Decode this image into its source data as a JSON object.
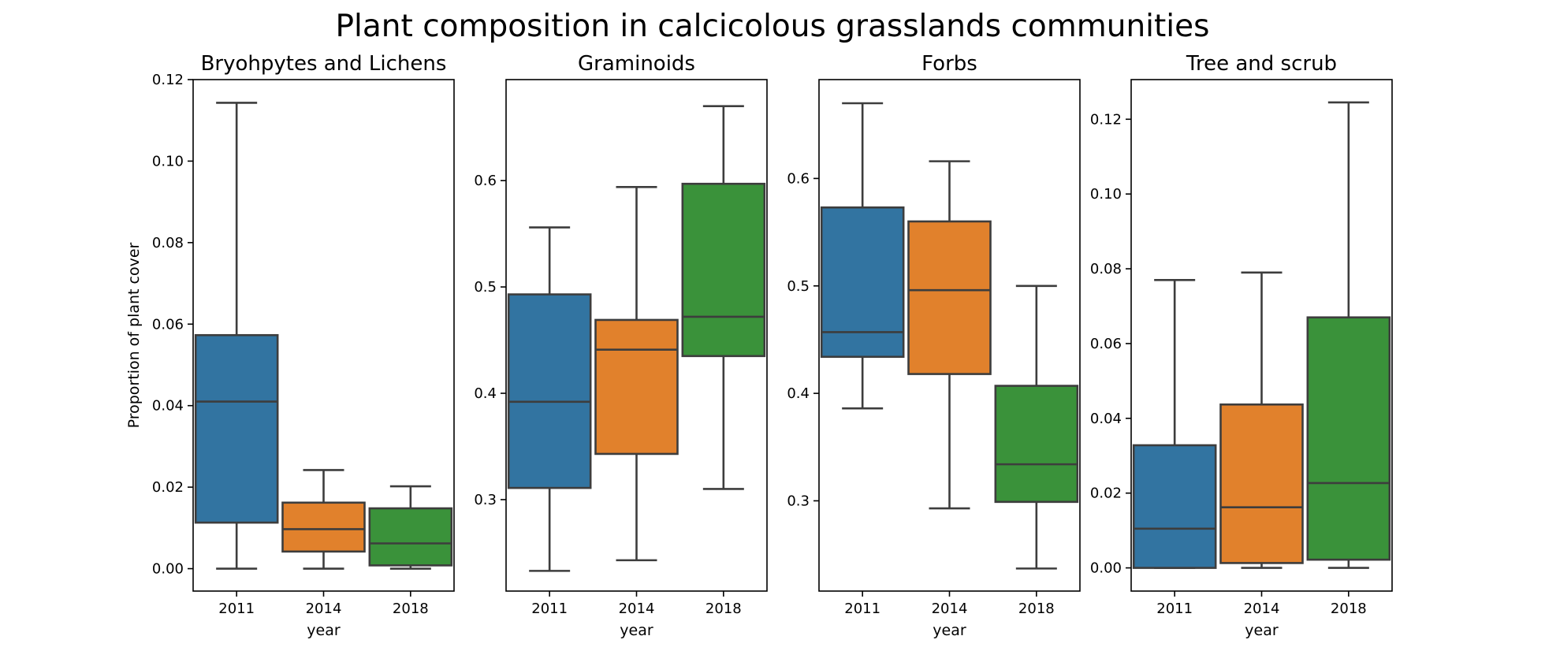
{
  "figure": {
    "title": "Plant composition in calcicolous grasslands communities",
    "colors": {
      "2011": "#3274a1",
      "2014": "#e1812c",
      "2018": "#3a923a",
      "line": "#3d3d3d"
    }
  },
  "chart_data": [
    {
      "type": "boxplot",
      "title": "Bryohpytes and Lichens",
      "xlabel": "year",
      "ylabel": "Proportion of plant cover",
      "categories": [
        "2011",
        "2014",
        "2018"
      ],
      "ylim": [
        -0.0055,
        0.12
      ],
      "yticks": [
        0.0,
        0.02,
        0.04,
        0.06,
        0.08,
        0.1,
        0.12
      ],
      "ytick_labels": [
        "0.00",
        "0.02",
        "0.04",
        "0.06",
        "0.08",
        "0.10",
        "0.12"
      ],
      "boxes": [
        {
          "category": "2011",
          "whisker_low": 0.0,
          "q1": 0.0113,
          "median": 0.041,
          "q3": 0.0573,
          "whisker_high": 0.1143
        },
        {
          "category": "2014",
          "whisker_low": 0.0,
          "q1": 0.0042,
          "median": 0.0097,
          "q3": 0.0162,
          "whisker_high": 0.0242
        },
        {
          "category": "2018",
          "whisker_low": 0.0,
          "q1": 0.0008,
          "median": 0.0062,
          "q3": 0.0148,
          "whisker_high": 0.0202
        }
      ]
    },
    {
      "type": "boxplot",
      "title": "Graminoids",
      "xlabel": "year",
      "ylabel": "",
      "categories": [
        "2011",
        "2014",
        "2018"
      ],
      "ylim": [
        0.214,
        0.695
      ],
      "yticks": [
        0.3,
        0.4,
        0.5,
        0.6
      ],
      "ytick_labels": [
        "0.3",
        "0.4",
        "0.5",
        "0.6"
      ],
      "boxes": [
        {
          "category": "2011",
          "whisker_low": 0.233,
          "q1": 0.311,
          "median": 0.392,
          "q3": 0.493,
          "whisker_high": 0.556
        },
        {
          "category": "2014",
          "whisker_low": 0.243,
          "q1": 0.343,
          "median": 0.441,
          "q3": 0.469,
          "whisker_high": 0.594
        },
        {
          "category": "2018",
          "whisker_low": 0.31,
          "q1": 0.435,
          "median": 0.472,
          "q3": 0.597,
          "whisker_high": 0.67
        }
      ]
    },
    {
      "type": "boxplot",
      "title": "Forbs",
      "xlabel": "year",
      "ylabel": "",
      "categories": [
        "2011",
        "2014",
        "2018"
      ],
      "ylim": [
        0.216,
        0.692
      ],
      "yticks": [
        0.3,
        0.4,
        0.5,
        0.6
      ],
      "ytick_labels": [
        "0.3",
        "0.4",
        "0.5",
        "0.6"
      ],
      "boxes": [
        {
          "category": "2011",
          "whisker_low": 0.386,
          "q1": 0.434,
          "median": 0.457,
          "q3": 0.573,
          "whisker_high": 0.67
        },
        {
          "category": "2014",
          "whisker_low": 0.293,
          "q1": 0.418,
          "median": 0.496,
          "q3": 0.56,
          "whisker_high": 0.616
        },
        {
          "category": "2018",
          "whisker_low": 0.237,
          "q1": 0.299,
          "median": 0.334,
          "q3": 0.407,
          "whisker_high": 0.5
        }
      ]
    },
    {
      "type": "boxplot",
      "title": "Tree and scrub",
      "xlabel": "year",
      "ylabel": "",
      "categories": [
        "2011",
        "2014",
        "2018"
      ],
      "ylim": [
        -0.0062,
        0.1306
      ],
      "yticks": [
        0.0,
        0.02,
        0.04,
        0.06,
        0.08,
        0.1,
        0.12
      ],
      "ytick_labels": [
        "0.00",
        "0.02",
        "0.04",
        "0.06",
        "0.08",
        "0.10",
        "0.12"
      ],
      "boxes": [
        {
          "category": "2011",
          "whisker_low": 0.0,
          "q1": 0.0,
          "median": 0.0105,
          "q3": 0.0328,
          "whisker_high": 0.077
        },
        {
          "category": "2014",
          "whisker_low": 0.0,
          "q1": 0.0013,
          "median": 0.0162,
          "q3": 0.0437,
          "whisker_high": 0.079
        },
        {
          "category": "2018",
          "whisker_low": 0.0,
          "q1": 0.0022,
          "median": 0.0227,
          "q3": 0.067,
          "whisker_high": 0.1245
        }
      ]
    }
  ]
}
